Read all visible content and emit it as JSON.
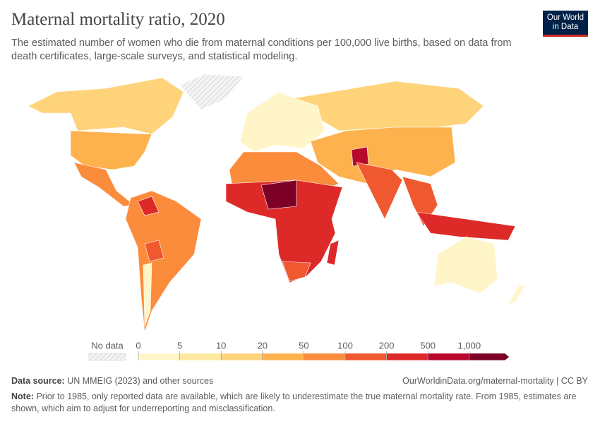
{
  "header": {
    "title": "Maternal mortality ratio, 2020",
    "subtitle": "The estimated number of women who die from maternal conditions per 100,000 live births, based on data from death certificates, large-scale surveys, and statistical modeling.",
    "logo": [
      "Our World",
      "in Data"
    ]
  },
  "legend": {
    "no_data_label": "No data",
    "ticks": [
      0,
      5,
      10,
      20,
      50,
      100,
      200,
      500,
      {
        "value": 1000,
        "label": "1,000"
      }
    ],
    "colors": [
      "#fff5c8",
      "#fee8a0",
      "#fed37a",
      "#fdb24e",
      "#fb8c3c",
      "#f0582f",
      "#dd2a29",
      "#b8082d",
      "#7d0026"
    ]
  },
  "footer": {
    "source_label": "Data source:",
    "source": "UN MMEIG (2023) and other sources",
    "url": "OurWorldinData.org/maternal-mortality | CC BY",
    "note_label": "Note:",
    "note": "Prior to 1985, only reported data are available, which are likely to underestimate the true maternal mortality rate. From 1985, estimates are shown, which aim to adjust for underreporting and misclassification."
  }
}
